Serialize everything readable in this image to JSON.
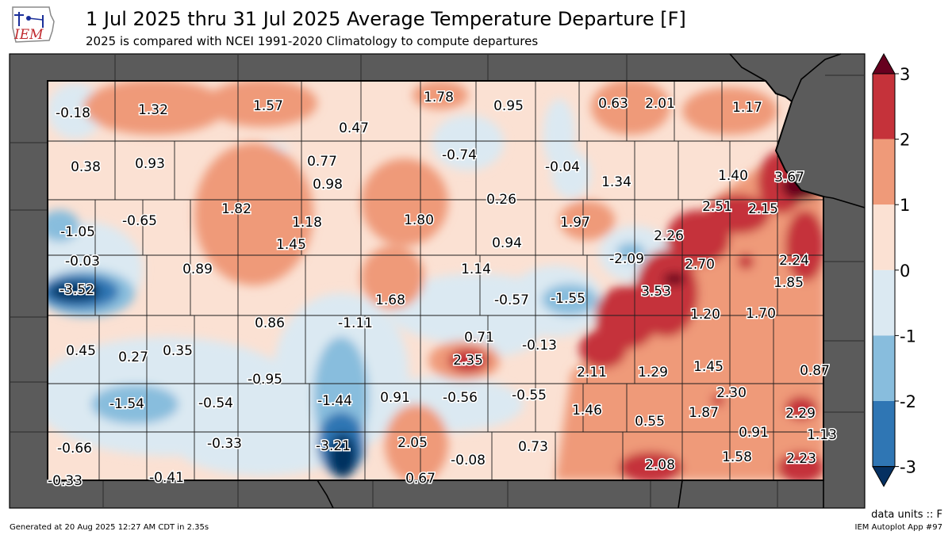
{
  "header": {
    "title": "1 Jul 2025 thru 31 Jul 2025 Average Temperature Departure [F]",
    "subtitle": "2025 is compared with NCEI 1991-2020 Climatology to compute departures",
    "logo_text": "IEM"
  },
  "footer": {
    "units": "data units :: F",
    "generated": "Generated at 20 Aug 2025 12:27 AM CDT in 2.35s",
    "app": "IEM Autoplot App #97"
  },
  "colorbar": {
    "ticks": [
      "3",
      "2",
      "1",
      "0",
      "-1",
      "-2",
      "-3"
    ],
    "colors": [
      "#67001f",
      "#c5323a",
      "#ef9a79",
      "#fbe1d3",
      "#dbe9f2",
      "#88bddd",
      "#2f76b4",
      "#053061"
    ]
  },
  "colors": {
    "background_land": "#5b5b5b",
    "state_fill": "#fbe1d3",
    "county_line": "#222222"
  },
  "station_values": [
    {
      "label": "-0.18",
      "value": -0.18
    },
    {
      "label": "1.32",
      "value": 1.32
    },
    {
      "label": "1.57",
      "value": 1.57
    },
    {
      "label": "1.78",
      "value": 1.78
    },
    {
      "label": "0.95",
      "value": 0.95
    },
    {
      "label": "0.63",
      "value": 0.63
    },
    {
      "label": "2.01",
      "value": 2.01
    },
    {
      "label": "1.17",
      "value": 1.17
    },
    {
      "label": "0.47",
      "value": 0.47
    },
    {
      "label": "0.38",
      "value": 0.38
    },
    {
      "label": "0.93",
      "value": 0.93
    },
    {
      "label": "0.77",
      "value": 0.77
    },
    {
      "label": "0.98",
      "value": 0.98
    },
    {
      "label": "-0.74",
      "value": -0.74
    },
    {
      "label": "-0.04",
      "value": -0.04
    },
    {
      "label": "1.34",
      "value": 1.34
    },
    {
      "label": "1.40",
      "value": 1.4
    },
    {
      "label": "3.67",
      "value": 3.67
    },
    {
      "label": "0.26",
      "value": 0.26
    },
    {
      "label": "2.51",
      "value": 2.51
    },
    {
      "label": "2.15",
      "value": 2.15
    },
    {
      "label": "-1.05",
      "value": -1.05
    },
    {
      "label": "-0.65",
      "value": -0.65
    },
    {
      "label": "1.82",
      "value": 1.82
    },
    {
      "label": "1.18",
      "value": 1.18
    },
    {
      "label": "1.80",
      "value": 1.8
    },
    {
      "label": "1.97",
      "value": 1.97
    },
    {
      "label": "1.45",
      "value": 1.45
    },
    {
      "label": "0.94",
      "value": 0.94
    },
    {
      "label": "2.26",
      "value": 2.26
    },
    {
      "label": "-0.03",
      "value": -0.03
    },
    {
      "label": "-2.09",
      "value": -2.09
    },
    {
      "label": "2.24",
      "value": 2.24
    },
    {
      "label": "0.89",
      "value": 0.89
    },
    {
      "label": "1.14",
      "value": 1.14
    },
    {
      "label": "2.70",
      "value": 2.7
    },
    {
      "label": "-3.52",
      "value": -3.52
    },
    {
      "label": "1.85",
      "value": 1.85
    },
    {
      "label": "1.68",
      "value": 1.68
    },
    {
      "label": "-0.57",
      "value": -0.57
    },
    {
      "label": "-1.55",
      "value": -1.55
    },
    {
      "label": "3.53",
      "value": 3.53
    },
    {
      "label": "1.20",
      "value": 1.2
    },
    {
      "label": "1.70",
      "value": 1.7
    },
    {
      "label": "0.86",
      "value": 0.86
    },
    {
      "label": "-1.11",
      "value": -1.11
    },
    {
      "label": "0.71",
      "value": 0.71
    },
    {
      "label": "0.45",
      "value": 0.45
    },
    {
      "label": "0.27",
      "value": 0.27
    },
    {
      "label": "0.35",
      "value": 0.35
    },
    {
      "label": "-0.13",
      "value": -0.13
    },
    {
      "label": "2.35",
      "value": 2.35
    },
    {
      "label": "2.11",
      "value": 2.11
    },
    {
      "label": "1.29",
      "value": 1.29
    },
    {
      "label": "1.45",
      "value": 1.45
    },
    {
      "label": "0.87",
      "value": 0.87
    },
    {
      "label": "-0.95",
      "value": -0.95
    },
    {
      "label": "2.30",
      "value": 2.3
    },
    {
      "label": "-1.54",
      "value": -1.54
    },
    {
      "label": "-0.54",
      "value": -0.54
    },
    {
      "label": "-1.44",
      "value": -1.44
    },
    {
      "label": "0.91",
      "value": 0.91
    },
    {
      "label": "-0.56",
      "value": -0.56
    },
    {
      "label": "-0.55",
      "value": -0.55
    },
    {
      "label": "1.46",
      "value": 1.46
    },
    {
      "label": "0.55",
      "value": 0.55
    },
    {
      "label": "1.87",
      "value": 1.87
    },
    {
      "label": "2.29",
      "value": 2.29
    },
    {
      "label": "0.91",
      "value": 0.91
    },
    {
      "label": "1.13",
      "value": 1.13
    },
    {
      "label": "-0.66",
      "value": -0.66
    },
    {
      "label": "-0.33",
      "value": -0.33
    },
    {
      "label": "-3.21",
      "value": -3.21
    },
    {
      "label": "2.05",
      "value": 2.05
    },
    {
      "label": "0.73",
      "value": 0.73
    },
    {
      "label": "-0.08",
      "value": -0.08
    },
    {
      "label": "2.08",
      "value": 2.08
    },
    {
      "label": "1.58",
      "value": 1.58
    },
    {
      "label": "2.23",
      "value": 2.23
    },
    {
      "label": "-0.33",
      "value": -0.33
    },
    {
      "label": "-0.41",
      "value": -0.41
    },
    {
      "label": "0.67",
      "value": 0.67
    }
  ]
}
